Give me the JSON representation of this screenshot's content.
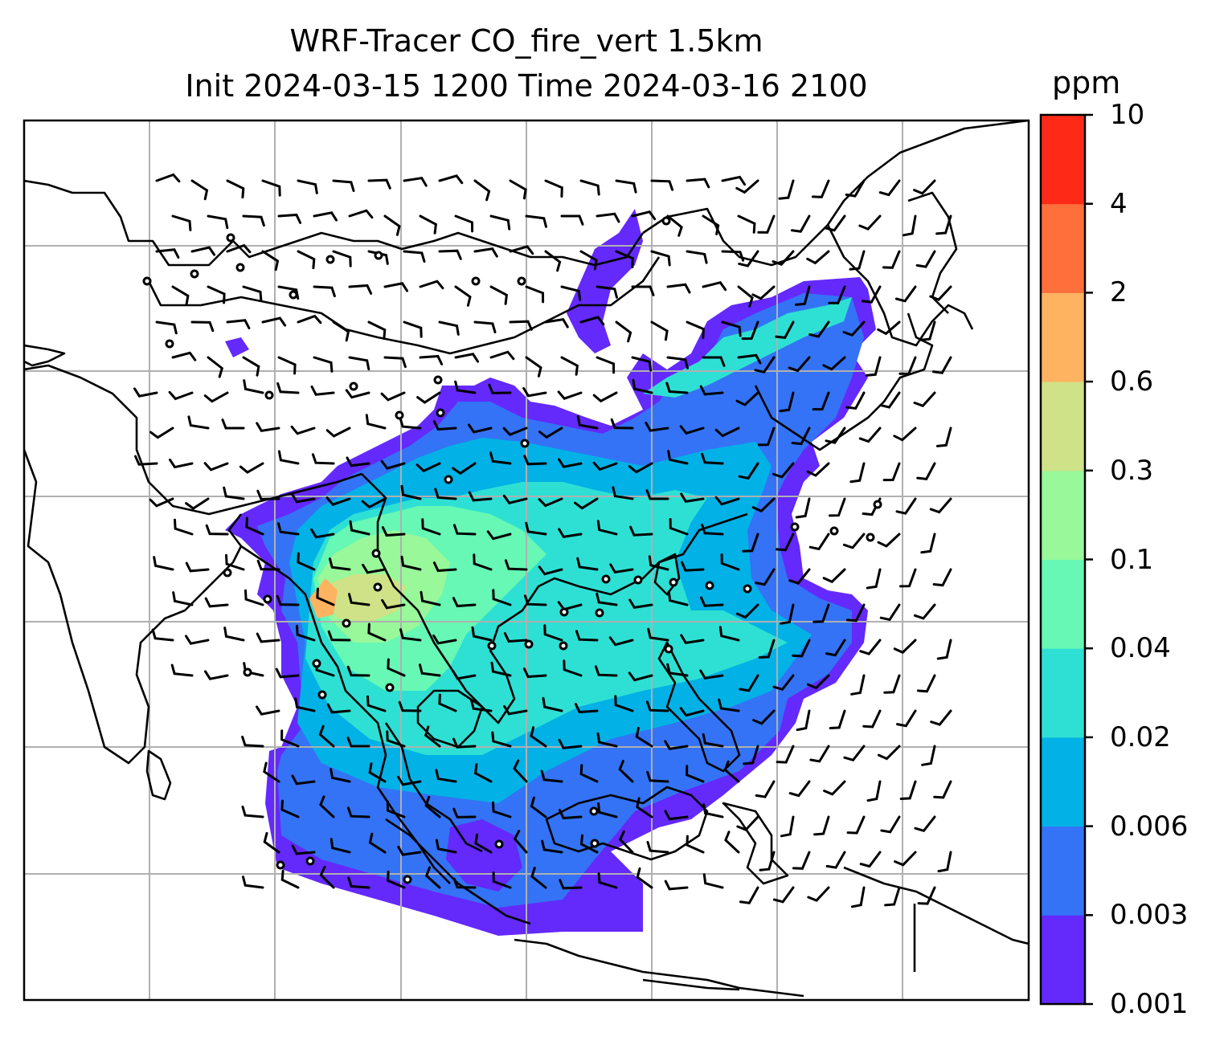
{
  "title_line1": "WRF-Tracer CO_fire_vert 1.5km",
  "title_line2": "Init 2024-03-15 1200 Time 2024-03-16 2100",
  "colorbar": {
    "unit": "ppm",
    "ticks": [
      "0.001",
      "0.003",
      "0.006",
      "0.02",
      "0.04",
      "0.1",
      "0.3",
      "0.6",
      "2",
      "4",
      "10"
    ],
    "colors": [
      "#6429fb",
      "#3473f5",
      "#02b1e6",
      "#2ee0d4",
      "#66f8b4",
      "#98f89a",
      "#cfe287",
      "#feb361",
      "#fe6f3c",
      "#fe2a17"
    ]
  },
  "colors": {
    "gridline": "#b0b0b0",
    "coastline": "#000000",
    "wind_barb": "#000000"
  }
}
